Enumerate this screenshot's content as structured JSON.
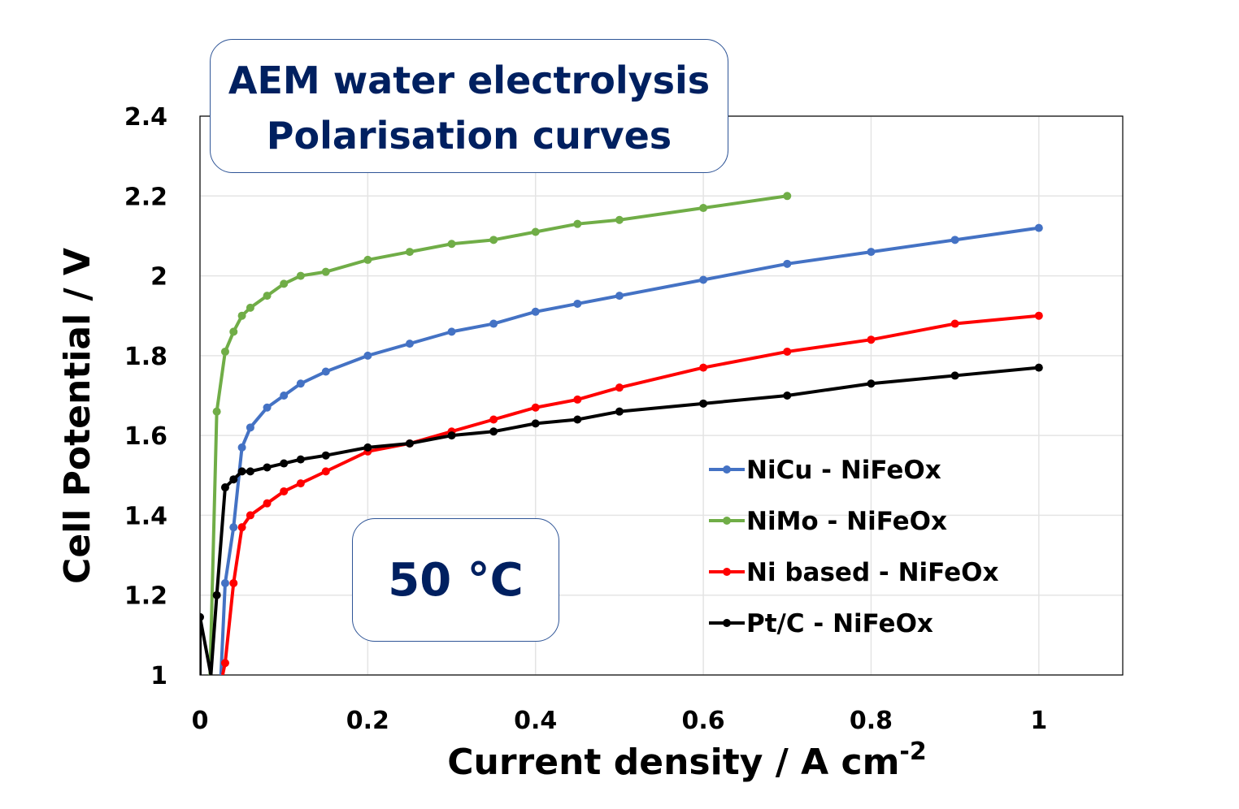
{
  "chart_data": {
    "type": "line",
    "title": "AEM water electrolysis",
    "subtitle": "Polarisation curves",
    "annotation": "50 °C",
    "xlabel": "Current density / A cm",
    "xlabel_sup": "-2",
    "ylabel": "Cell Potential / V",
    "xlim": [
      0,
      1.1
    ],
    "ylim": [
      1,
      2.4
    ],
    "xticks": [
      "0",
      "0.2",
      "0.4",
      "0.6",
      "0.8",
      "1"
    ],
    "yticks": [
      "1",
      "1.2",
      "1.4",
      "1.6",
      "1.8",
      "2",
      "2.2",
      "2.4"
    ],
    "grid": true,
    "legend_position": "right",
    "series": [
      {
        "name": "NiCu - NiFeOx",
        "color": "#4472c4",
        "x": [
          0.025,
          0.03,
          0.04,
          0.05,
          0.06,
          0.08,
          0.1,
          0.12,
          0.15,
          0.2,
          0.25,
          0.3,
          0.35,
          0.4,
          0.45,
          0.5,
          0.6,
          0.7,
          0.8,
          0.9,
          1.0
        ],
        "y": [
          1.0,
          1.23,
          1.37,
          1.57,
          1.62,
          1.67,
          1.7,
          1.73,
          1.76,
          1.8,
          1.83,
          1.86,
          1.88,
          1.91,
          1.93,
          1.95,
          1.99,
          2.03,
          2.06,
          2.09,
          2.12
        ]
      },
      {
        "name": "NiMo - NiFeOx",
        "color": "#70ad47",
        "x": [
          0.012,
          0.02,
          0.03,
          0.04,
          0.05,
          0.06,
          0.08,
          0.1,
          0.12,
          0.15,
          0.2,
          0.25,
          0.3,
          0.35,
          0.4,
          0.45,
          0.5,
          0.6,
          0.7
        ],
        "y": [
          1.0,
          1.66,
          1.81,
          1.86,
          1.9,
          1.92,
          1.95,
          1.98,
          2.0,
          2.01,
          2.04,
          2.06,
          2.08,
          2.09,
          2.11,
          2.13,
          2.14,
          2.17,
          2.2
        ]
      },
      {
        "name": "Ni based - NiFeOx",
        "color": "#ff0000",
        "x": [
          0.027,
          0.03,
          0.04,
          0.05,
          0.06,
          0.08,
          0.1,
          0.12,
          0.15,
          0.2,
          0.25,
          0.3,
          0.35,
          0.4,
          0.45,
          0.5,
          0.6,
          0.7,
          0.8,
          0.9,
          1.0
        ],
        "y": [
          1.0,
          1.03,
          1.23,
          1.37,
          1.4,
          1.43,
          1.46,
          1.48,
          1.51,
          1.56,
          1.58,
          1.61,
          1.64,
          1.67,
          1.69,
          1.72,
          1.77,
          1.81,
          1.84,
          1.88,
          1.9
        ]
      },
      {
        "name": "Pt/C - NiFeOx",
        "color": "#000000",
        "x": [
          0,
          0,
          0.013,
          0.02,
          0.03,
          0.04,
          0.05,
          0.06,
          0.08,
          0.1,
          0.12,
          0.15,
          0.2,
          0.25,
          0.3,
          0.35,
          0.4,
          0.45,
          0.5,
          0.6,
          0.7,
          0.8,
          0.9,
          1.0
        ],
        "y": [
          1.0,
          1.145,
          1.0,
          1.2,
          1.47,
          1.49,
          1.51,
          1.51,
          1.52,
          1.53,
          1.54,
          1.55,
          1.57,
          1.58,
          1.6,
          1.61,
          1.63,
          1.64,
          1.66,
          1.68,
          1.7,
          1.73,
          1.75,
          1.77
        ]
      }
    ]
  }
}
